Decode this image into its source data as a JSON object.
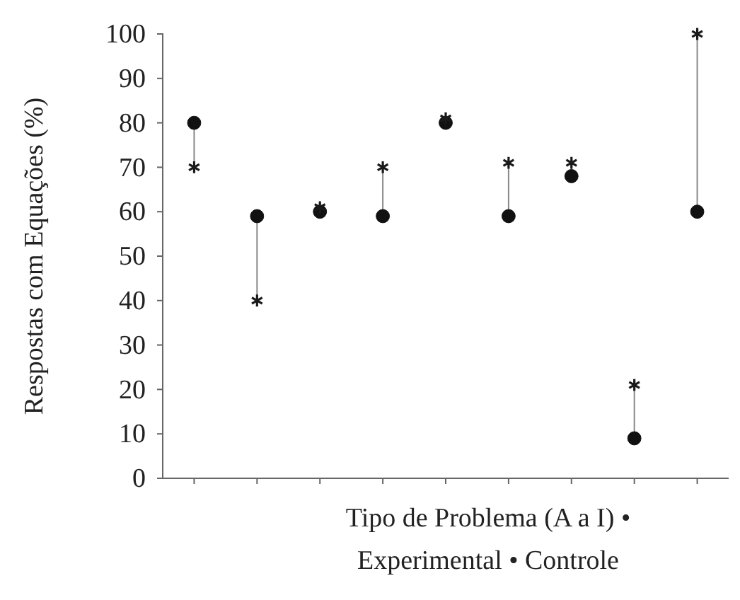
{
  "chart_data": {
    "type": "scatter",
    "xlabel": "Tipo de Problema (A a I) • Experimental • Controle",
    "ylabel": "Respostas com Equações (%)",
    "categories": [
      null,
      null,
      null,
      null,
      null,
      null,
      null,
      null,
      null
    ],
    "ylim": [
      0,
      100
    ],
    "yticks": [
      0,
      10,
      20,
      30,
      40,
      50,
      60,
      70,
      80,
      90,
      100
    ],
    "grid": false,
    "series": [
      {
        "color": "#1a1a1a",
        "marker": "cross",
        "values": [
          70,
          40,
          61,
          70,
          81,
          71,
          71,
          21,
          100
        ]
      },
      {
        "color": "#111111",
        "marker": "circle",
        "values": [
          80,
          59,
          60,
          59,
          80,
          59,
          68,
          9,
          60
        ]
      }
    ]
  }
}
